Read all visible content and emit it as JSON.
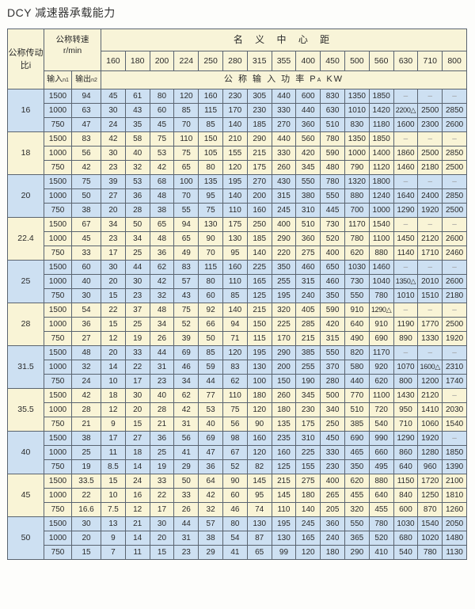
{
  "title": "DCY 减速器承载能力",
  "header": {
    "ratio_label": "公称传动比i",
    "speed_label": "公称转速",
    "speed_unit": "r/min",
    "center_distance_label": "名 义 中 心 距",
    "input_label": "输入",
    "input_sub": "n1",
    "output_label": "输出",
    "output_sub": "n2",
    "power_label": "公 称 输 入 功 率 P",
    "power_sub": "A",
    "power_unit": " KW",
    "center_distances": [
      "160",
      "180",
      "200",
      "224",
      "250",
      "280",
      "315",
      "355",
      "400",
      "450",
      "500",
      "560",
      "630",
      "710",
      "800"
    ]
  },
  "colors": {
    "blue_group": "#cde0f2",
    "yellow_group": "#f9f4d6",
    "header": "#f8f4d8",
    "border": "#5a6470"
  },
  "groups": [
    {
      "ratio": "16",
      "shade": "blue",
      "rows": [
        {
          "n1": "1500",
          "n2": "94",
          "p": [
            "45",
            "61",
            "80",
            "120",
            "160",
            "230",
            "305",
            "440",
            "600",
            "830",
            "1350",
            "1850",
            "–",
            "–",
            "–"
          ]
        },
        {
          "n1": "1000",
          "n2": "63",
          "p": [
            "30",
            "43",
            "60",
            "85",
            "115",
            "170",
            "230",
            "330",
            "440",
            "630",
            "1010",
            "1420",
            "2200△",
            "2500",
            "2850"
          ]
        },
        {
          "n1": "750",
          "n2": "47",
          "p": [
            "24",
            "35",
            "45",
            "70",
            "85",
            "140",
            "185",
            "270",
            "360",
            "510",
            "830",
            "1180",
            "1600",
            "2300",
            "2600"
          ]
        }
      ]
    },
    {
      "ratio": "18",
      "shade": "yellow",
      "rows": [
        {
          "n1": "1500",
          "n2": "83",
          "p": [
            "42",
            "58",
            "75",
            "110",
            "150",
            "210",
            "290",
            "440",
            "560",
            "780",
            "1350",
            "1850",
            "–",
            "–",
            "–"
          ]
        },
        {
          "n1": "1000",
          "n2": "56",
          "p": [
            "30",
            "40",
            "53",
            "75",
            "105",
            "155",
            "215",
            "330",
            "420",
            "590",
            "1000",
            "1400",
            "1860",
            "2500",
            "2850"
          ]
        },
        {
          "n1": "750",
          "n2": "42",
          "p": [
            "23",
            "32",
            "42",
            "65",
            "80",
            "120",
            "175",
            "260",
            "345",
            "480",
            "790",
            "1120",
            "1460",
            "2180",
            "2500"
          ]
        }
      ]
    },
    {
      "ratio": "20",
      "shade": "blue",
      "rows": [
        {
          "n1": "1500",
          "n2": "75",
          "p": [
            "39",
            "53",
            "68",
            "100",
            "135",
            "195",
            "270",
            "430",
            "550",
            "780",
            "1320",
            "1800",
            "–",
            "–",
            "–"
          ]
        },
        {
          "n1": "1000",
          "n2": "50",
          "p": [
            "27",
            "36",
            "48",
            "70",
            "95",
            "140",
            "200",
            "315",
            "380",
            "550",
            "880",
            "1240",
            "1640",
            "2400",
            "2850"
          ]
        },
        {
          "n1": "750",
          "n2": "38",
          "p": [
            "20",
            "28",
            "38",
            "55",
            "75",
            "110",
            "160",
            "245",
            "310",
            "445",
            "700",
            "1000",
            "1290",
            "1920",
            "2500"
          ]
        }
      ]
    },
    {
      "ratio": "22.4",
      "shade": "yellow",
      "rows": [
        {
          "n1": "1500",
          "n2": "67",
          "p": [
            "34",
            "50",
            "65",
            "94",
            "130",
            "175",
            "250",
            "400",
            "510",
            "730",
            "1170",
            "1540",
            "–",
            "–",
            "–"
          ]
        },
        {
          "n1": "1000",
          "n2": "45",
          "p": [
            "23",
            "34",
            "48",
            "65",
            "90",
            "130",
            "185",
            "290",
            "360",
            "520",
            "780",
            "1100",
            "1450",
            "2120",
            "2600"
          ]
        },
        {
          "n1": "750",
          "n2": "33",
          "p": [
            "17",
            "25",
            "36",
            "49",
            "70",
            "95",
            "140",
            "220",
            "275",
            "400",
            "620",
            "880",
            "1140",
            "1710",
            "2460"
          ]
        }
      ]
    },
    {
      "ratio": "25",
      "shade": "blue",
      "rows": [
        {
          "n1": "1500",
          "n2": "60",
          "p": [
            "30",
            "44",
            "62",
            "83",
            "115",
            "160",
            "225",
            "350",
            "460",
            "650",
            "1030",
            "1460",
            "–",
            "–",
            "–"
          ]
        },
        {
          "n1": "1000",
          "n2": "40",
          "p": [
            "20",
            "30",
            "42",
            "57",
            "80",
            "110",
            "165",
            "255",
            "315",
            "460",
            "730",
            "1040",
            "1350△",
            "2010",
            "2600"
          ]
        },
        {
          "n1": "750",
          "n2": "30",
          "p": [
            "15",
            "23",
            "32",
            "43",
            "60",
            "85",
            "125",
            "195",
            "240",
            "350",
            "550",
            "780",
            "1010",
            "1510",
            "2180"
          ]
        }
      ]
    },
    {
      "ratio": "28",
      "shade": "yellow",
      "rows": [
        {
          "n1": "1500",
          "n2": "54",
          "p": [
            "22",
            "37",
            "48",
            "75",
            "92",
            "140",
            "215",
            "320",
            "405",
            "590",
            "910",
            "1290△",
            "–",
            "–",
            "–"
          ]
        },
        {
          "n1": "1000",
          "n2": "36",
          "p": [
            "15",
            "25",
            "34",
            "52",
            "66",
            "94",
            "150",
            "225",
            "285",
            "420",
            "640",
            "910",
            "1190",
            "1770",
            "2500"
          ]
        },
        {
          "n1": "750",
          "n2": "27",
          "p": [
            "12",
            "19",
            "26",
            "39",
            "50",
            "71",
            "115",
            "170",
            "215",
            "315",
            "490",
            "690",
            "890",
            "1330",
            "1920"
          ]
        }
      ]
    },
    {
      "ratio": "31.5",
      "shade": "blue",
      "rows": [
        {
          "n1": "1500",
          "n2": "48",
          "p": [
            "20",
            "33",
            "44",
            "69",
            "85",
            "120",
            "195",
            "290",
            "385",
            "550",
            "820",
            "1170",
            "–",
            "–",
            "–"
          ]
        },
        {
          "n1": "1000",
          "n2": "32",
          "p": [
            "14",
            "22",
            "31",
            "46",
            "59",
            "83",
            "130",
            "200",
            "255",
            "370",
            "580",
            "920",
            "1070",
            "1600△",
            "2310"
          ]
        },
        {
          "n1": "750",
          "n2": "24",
          "p": [
            "10",
            "17",
            "23",
            "34",
            "44",
            "62",
            "100",
            "150",
            "190",
            "280",
            "440",
            "620",
            "800",
            "1200",
            "1740"
          ]
        }
      ]
    },
    {
      "ratio": "35.5",
      "shade": "yellow",
      "rows": [
        {
          "n1": "1500",
          "n2": "42",
          "p": [
            "18",
            "30",
            "40",
            "62",
            "77",
            "110",
            "180",
            "260",
            "345",
            "500",
            "770",
            "1100",
            "1430",
            "2120",
            "–"
          ]
        },
        {
          "n1": "1000",
          "n2": "28",
          "p": [
            "12",
            "20",
            "28",
            "42",
            "53",
            "75",
            "120",
            "180",
            "230",
            "340",
            "510",
            "720",
            "950",
            "1410",
            "2030"
          ]
        },
        {
          "n1": "750",
          "n2": "21",
          "p": [
            "9",
            "15",
            "21",
            "31",
            "40",
            "56",
            "90",
            "135",
            "175",
            "250",
            "385",
            "540",
            "710",
            "1060",
            "1540"
          ]
        }
      ]
    },
    {
      "ratio": "40",
      "shade": "blue",
      "rows": [
        {
          "n1": "1500",
          "n2": "38",
          "p": [
            "17",
            "27",
            "36",
            "56",
            "69",
            "98",
            "160",
            "235",
            "310",
            "450",
            "690",
            "990",
            "1290",
            "1920",
            "–"
          ]
        },
        {
          "n1": "1000",
          "n2": "25",
          "p": [
            "11",
            "18",
            "25",
            "41",
            "47",
            "67",
            "120",
            "160",
            "225",
            "330",
            "465",
            "660",
            "860",
            "1280",
            "1850"
          ]
        },
        {
          "n1": "750",
          "n2": "19",
          "p": [
            "8.5",
            "14",
            "19",
            "29",
            "36",
            "52",
            "82",
            "125",
            "155",
            "230",
            "350",
            "495",
            "640",
            "960",
            "1390"
          ]
        }
      ]
    },
    {
      "ratio": "45",
      "shade": "yellow",
      "rows": [
        {
          "n1": "1500",
          "n2": "33.5",
          "p": [
            "15",
            "24",
            "33",
            "50",
            "64",
            "90",
            "145",
            "215",
            "275",
            "400",
            "620",
            "880",
            "1150",
            "1720",
            "2100"
          ]
        },
        {
          "n1": "1000",
          "n2": "22",
          "p": [
            "10",
            "16",
            "22",
            "33",
            "42",
            "60",
            "95",
            "145",
            "180",
            "265",
            "455",
            "640",
            "840",
            "1250",
            "1810"
          ]
        },
        {
          "n1": "750",
          "n2": "16.6",
          "p": [
            "7.5",
            "12",
            "17",
            "26",
            "32",
            "46",
            "74",
            "110",
            "140",
            "205",
            "320",
            "455",
            "600",
            "870",
            "1260"
          ]
        }
      ]
    },
    {
      "ratio": "50",
      "shade": "blue",
      "rows": [
        {
          "n1": "1500",
          "n2": "30",
          "p": [
            "13",
            "21",
            "30",
            "44",
            "57",
            "80",
            "130",
            "195",
            "245",
            "360",
            "550",
            "780",
            "1030",
            "1540",
            "2050"
          ]
        },
        {
          "n1": "1000",
          "n2": "20",
          "p": [
            "9",
            "14",
            "20",
            "31",
            "38",
            "54",
            "87",
            "130",
            "165",
            "240",
            "365",
            "520",
            "680",
            "1020",
            "1480"
          ]
        },
        {
          "n1": "750",
          "n2": "15",
          "p": [
            "7",
            "11",
            "15",
            "23",
            "29",
            "41",
            "65",
            "99",
            "120",
            "180",
            "290",
            "410",
            "540",
            "780",
            "1130"
          ]
        }
      ]
    }
  ]
}
